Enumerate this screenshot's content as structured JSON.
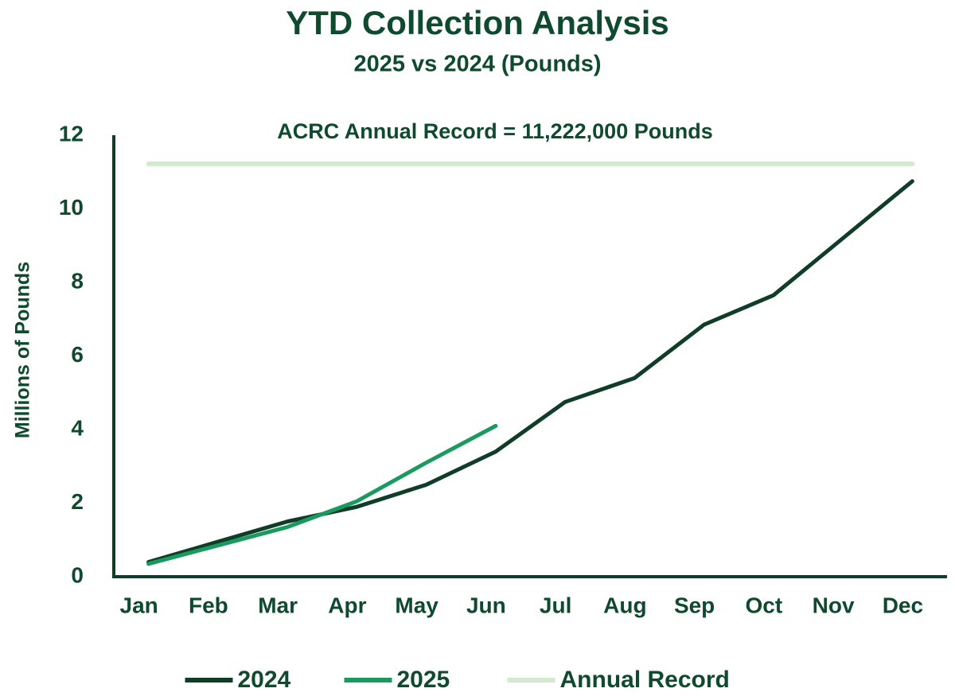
{
  "chart_data": {
    "type": "line",
    "title": "YTD Collection Analysis",
    "subtitle": "2025 vs 2024 (Pounds)",
    "y_label": "Millions of Pounds",
    "annotation": "ACRC Annual Record = 11,222,000 Pounds",
    "categories": [
      "Jan",
      "Feb",
      "Mar",
      "Apr",
      "May",
      "Jun",
      "Jul",
      "Aug",
      "Sep",
      "Oct",
      "Nov",
      "Dec"
    ],
    "series": [
      {
        "name": "2024",
        "color": "#0f3d28",
        "values": [
          0.4,
          0.95,
          1.5,
          1.9,
          2.5,
          3.4,
          4.75,
          5.4,
          6.85,
          7.65,
          9.2,
          10.75
        ]
      },
      {
        "name": "2025",
        "color": "#1a9a5f",
        "values": [
          0.35,
          0.85,
          1.35,
          2.05,
          3.1,
          4.1,
          null,
          null,
          null,
          null,
          null,
          null
        ]
      },
      {
        "name": "Annual Record",
        "color": "#d4ead0",
        "values": [
          11.222,
          11.222,
          11.222,
          11.222,
          11.222,
          11.222,
          11.222,
          11.222,
          11.222,
          11.222,
          11.222,
          11.222
        ]
      }
    ],
    "ylim": [
      0,
      12
    ],
    "yticks": [
      0,
      2,
      4,
      6,
      8,
      10,
      12
    ],
    "grid": false,
    "legend": "bottom"
  }
}
